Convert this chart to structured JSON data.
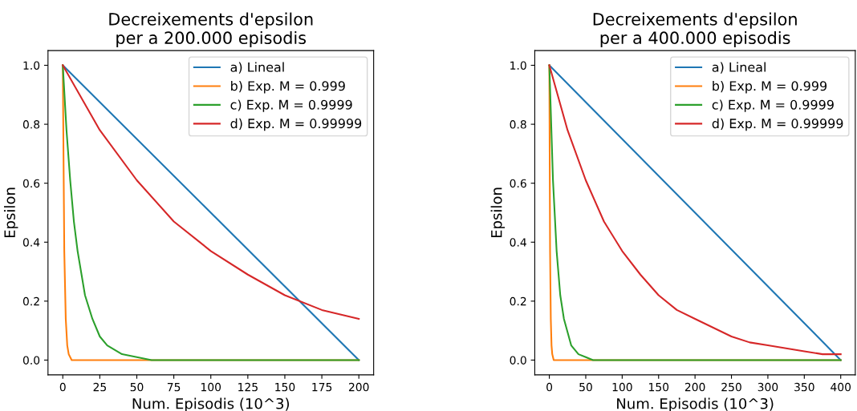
{
  "chart_data": [
    {
      "type": "line",
      "title": "Decreixements d'epsilon\nper a 200.000 episodis",
      "xlabel": "Num. Episodis (10^3)",
      "ylabel": "Epsilon",
      "xlim": [
        -10,
        210
      ],
      "xticks": [
        0,
        25,
        50,
        75,
        100,
        125,
        150,
        175,
        200
      ],
      "ylim": [
        -0.05,
        1.05
      ],
      "yticks": [
        {
          "value": 0,
          "label": "0.0"
        },
        {
          "value": 0.2,
          "label": "0.2"
        },
        {
          "value": 0.4,
          "label": "0.4"
        },
        {
          "value": 0.6,
          "label": "0.6"
        },
        {
          "value": 0.8,
          "label": "0.8"
        },
        {
          "value": 1,
          "label": "1.0"
        }
      ],
      "legend": "top right",
      "grid": false,
      "series": [
        {
          "name": "a) Lineal",
          "color": "#1f77b4",
          "x": [
            0,
            200
          ],
          "values": [
            1,
            0
          ]
        },
        {
          "name": "b) Exp. M = 0.999",
          "color": "#ff7f0e",
          "x": [
            0,
            1,
            2,
            3,
            4,
            5,
            6,
            8,
            200
          ],
          "values": [
            1,
            0.37,
            0.14,
            0.05,
            0.02,
            0.01,
            0,
            0,
            0
          ]
        },
        {
          "name": "c) Exp. M = 0.9999",
          "color": "#2ca02c",
          "x": [
            0,
            2.5,
            5,
            7.5,
            10,
            15,
            20,
            25,
            30,
            40,
            50,
            60,
            75,
            200
          ],
          "values": [
            1,
            0.78,
            0.61,
            0.47,
            0.37,
            0.22,
            0.14,
            0.08,
            0.05,
            0.02,
            0.01,
            0,
            0,
            0
          ]
        },
        {
          "name": "d) Exp. M = 0.99999",
          "color": "#d62728",
          "x": [
            0,
            25,
            50,
            75,
            100,
            125,
            150,
            175,
            200
          ],
          "values": [
            1,
            0.78,
            0.61,
            0.47,
            0.37,
            0.29,
            0.22,
            0.17,
            0.14
          ]
        }
      ]
    },
    {
      "type": "line",
      "title": "Decreixements d'epsilon\nper a 400.000 episodis",
      "xlabel": "Num. Episodis (10^3)",
      "ylabel": "Epsilon",
      "xlim": [
        -20,
        420
      ],
      "xticks": [
        0,
        50,
        100,
        150,
        200,
        250,
        300,
        350,
        400
      ],
      "ylim": [
        -0.05,
        1.05
      ],
      "yticks": [
        {
          "value": 0,
          "label": "0.0"
        },
        {
          "value": 0.2,
          "label": "0.2"
        },
        {
          "value": 0.4,
          "label": "0.4"
        },
        {
          "value": 0.6,
          "label": "0.6"
        },
        {
          "value": 0.8,
          "label": "0.8"
        },
        {
          "value": 1,
          "label": "1.0"
        }
      ],
      "legend": "top right",
      "grid": false,
      "series": [
        {
          "name": "a) Lineal",
          "color": "#1f77b4",
          "x": [
            0,
            400
          ],
          "values": [
            1,
            0
          ]
        },
        {
          "name": "b) Exp. M = 0.999",
          "color": "#ff7f0e",
          "x": [
            0,
            1,
            2,
            3,
            4,
            5,
            6,
            8,
            400
          ],
          "values": [
            1,
            0.37,
            0.14,
            0.05,
            0.02,
            0.01,
            0,
            0,
            0
          ]
        },
        {
          "name": "c) Exp. M = 0.9999",
          "color": "#2ca02c",
          "x": [
            0,
            5,
            10,
            15,
            20,
            30,
            40,
            50,
            60,
            80,
            100,
            400
          ],
          "values": [
            1,
            0.61,
            0.37,
            0.22,
            0.14,
            0.05,
            0.02,
            0.01,
            0,
            0,
            0,
            0
          ]
        },
        {
          "name": "d) Exp. M = 0.99999",
          "color": "#d62728",
          "x": [
            0,
            25,
            50,
            75,
            100,
            125,
            150,
            175,
            200,
            225,
            250,
            275,
            300,
            325,
            350,
            375,
            400
          ],
          "values": [
            1,
            0.78,
            0.61,
            0.47,
            0.37,
            0.29,
            0.22,
            0.17,
            0.14,
            0.11,
            0.08,
            0.06,
            0.05,
            0.04,
            0.03,
            0.02,
            0.02
          ]
        }
      ]
    }
  ]
}
